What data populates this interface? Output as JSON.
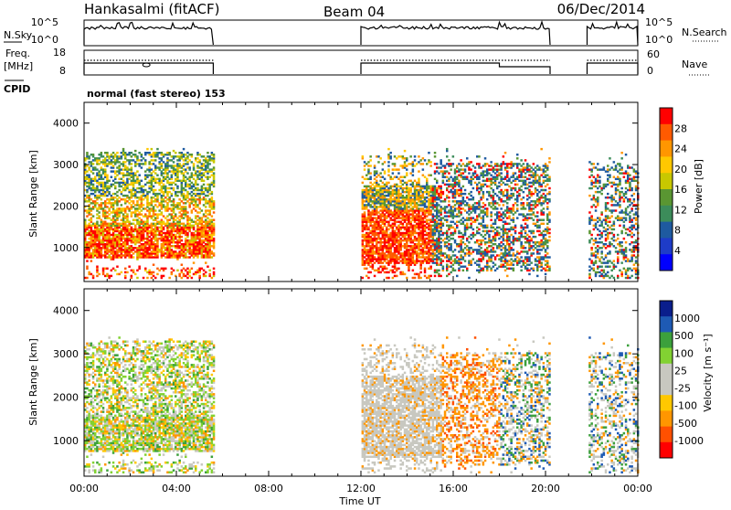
{
  "header": {
    "station": "Hankasalmi (fitACF)",
    "beam": "Beam 04",
    "date": "06/Dec/2014"
  },
  "strips": {
    "nsky_label": "N.Sky",
    "nsky_ticks": [
      "10^5",
      "10^0"
    ],
    "nsearch_label": "N.Search",
    "nsearch_ticks": [
      "10^5",
      "10^0"
    ],
    "freq_label_1": "Freq.",
    "freq_label_2": "[MHz]",
    "freq_ticks": [
      "18",
      "8"
    ],
    "nave_label": "Nave",
    "nave_ticks": [
      "60",
      "0"
    ],
    "cpid_label": "CPID",
    "cpid_text": "normal (fast stereo) 153"
  },
  "chart_data": [
    {
      "type": "heatmap",
      "panel": "power",
      "ylabel": "Slant Range [km]",
      "xlabel": "Time UT",
      "y_ticks": [
        "4000",
        "3000",
        "2000",
        "1000"
      ],
      "ylim": [
        180,
        4500
      ],
      "xlim": [
        0,
        24
      ],
      "x_ticks": [
        "00:00",
        "04:00",
        "08:00",
        "12:00",
        "16:00",
        "20:00",
        "00:00"
      ],
      "colorbar": {
        "label": "Power [dB]",
        "ticks": [
          "28",
          "24",
          "20",
          "16",
          "12",
          "8",
          "4"
        ],
        "colors": [
          "#ff0000",
          "#ff5a00",
          "#ff9600",
          "#ffc800",
          "#c8c800",
          "#5a9632",
          "#3c8c5a",
          "#1e5aa0",
          "#1e3cc8",
          "#0000ff"
        ]
      },
      "data_intervals_ut": [
        [
          0,
          5.6
        ],
        [
          12,
          20.2
        ],
        [
          21.8,
          24
        ]
      ]
    },
    {
      "type": "heatmap",
      "panel": "velocity",
      "ylabel": "Slant Range [km]",
      "xlabel": "Time UT",
      "y_ticks": [
        "4000",
        "3000",
        "2000",
        "1000"
      ],
      "ylim": [
        180,
        4500
      ],
      "xlim": [
        0,
        24
      ],
      "x_ticks": [
        "00:00",
        "04:00",
        "08:00",
        "12:00",
        "16:00",
        "20:00",
        "00:00"
      ],
      "colorbar": {
        "label": "Velocity [m s⁻¹]",
        "ticks": [
          "1000",
          "500",
          "100",
          "25",
          "-25",
          "-100",
          "-500",
          "-1000"
        ],
        "colors": [
          "#0a1e8c",
          "#1e5ab4",
          "#3ca03c",
          "#82d232",
          "#c8c8c0",
          "#c8c8c0",
          "#ffc800",
          "#ff9600",
          "#ff5000",
          "#ff0000"
        ]
      },
      "data_intervals_ut": [
        [
          0,
          5.6
        ],
        [
          12,
          20.2
        ],
        [
          21.8,
          24
        ]
      ]
    }
  ]
}
